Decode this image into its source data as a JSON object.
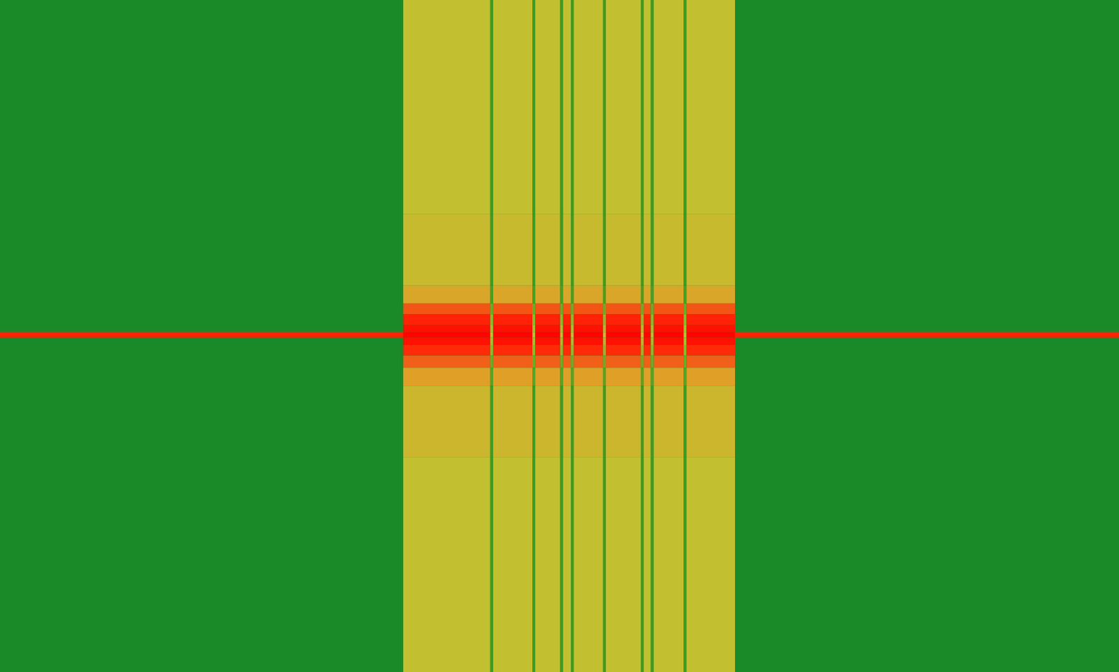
{
  "chart_data": {
    "type": "heatmap",
    "tick_labels": false,
    "xlim": [
      0,
      1568
    ],
    "ylim": [
      0,
      941
    ],
    "x_edges": [
      0,
      565,
      687,
      691,
      746,
      750,
      785,
      789,
      800,
      804,
      845,
      849,
      898,
      902,
      912,
      916,
      958,
      962,
      1030,
      1568
    ],
    "y_edges": [
      0,
      300,
      400,
      425,
      440,
      455,
      465,
      473,
      483,
      498,
      515,
      540,
      640,
      941
    ],
    "color_range": [
      0,
      100
    ],
    "cells": [
      [
        30,
        60,
        38,
        60,
        38,
        60,
        38,
        60,
        38,
        60,
        38,
        60,
        38,
        60,
        38,
        60,
        38,
        60,
        30
      ],
      [
        30,
        62,
        38,
        62,
        38,
        62,
        38,
        62,
        38,
        62,
        38,
        62,
        38,
        62,
        38,
        62,
        38,
        62,
        30
      ],
      [
        30,
        68,
        40,
        68,
        40,
        68,
        40,
        68,
        40,
        68,
        40,
        68,
        40,
        68,
        40,
        68,
        40,
        68,
        30
      ],
      [
        30,
        82,
        45,
        82,
        45,
        82,
        45,
        82,
        45,
        82,
        45,
        82,
        45,
        82,
        45,
        82,
        45,
        82,
        30
      ],
      [
        30,
        92,
        50,
        92,
        50,
        92,
        50,
        92,
        50,
        92,
        50,
        92,
        50,
        92,
        50,
        92,
        50,
        92,
        30
      ],
      [
        30,
        96,
        55,
        96,
        55,
        96,
        55,
        96,
        55,
        96,
        55,
        96,
        55,
        96,
        55,
        96,
        55,
        96,
        30
      ],
      [
        92,
        99,
        62,
        99,
        62,
        99,
        62,
        99,
        62,
        99,
        62,
        99,
        62,
        99,
        62,
        99,
        62,
        99,
        92
      ],
      [
        30,
        96,
        55,
        96,
        55,
        96,
        55,
        96,
        55,
        96,
        55,
        96,
        55,
        96,
        55,
        96,
        55,
        96,
        30
      ],
      [
        30,
        90,
        50,
        90,
        50,
        90,
        50,
        90,
        50,
        90,
        50,
        90,
        50,
        90,
        50,
        90,
        50,
        90,
        30
      ],
      [
        30,
        80,
        45,
        80,
        45,
        80,
        45,
        80,
        45,
        80,
        45,
        80,
        45,
        80,
        45,
        80,
        45,
        80,
        30
      ],
      [
        30,
        70,
        42,
        70,
        42,
        70,
        42,
        70,
        42,
        70,
        42,
        70,
        42,
        70,
        42,
        70,
        42,
        70,
        30
      ],
      [
        30,
        63,
        38,
        63,
        38,
        63,
        38,
        63,
        38,
        63,
        38,
        63,
        38,
        63,
        38,
        63,
        38,
        63,
        30
      ],
      [
        30,
        60,
        38,
        60,
        38,
        60,
        38,
        60,
        38,
        60,
        38,
        60,
        38,
        60,
        38,
        60,
        38,
        60,
        30
      ]
    ]
  }
}
